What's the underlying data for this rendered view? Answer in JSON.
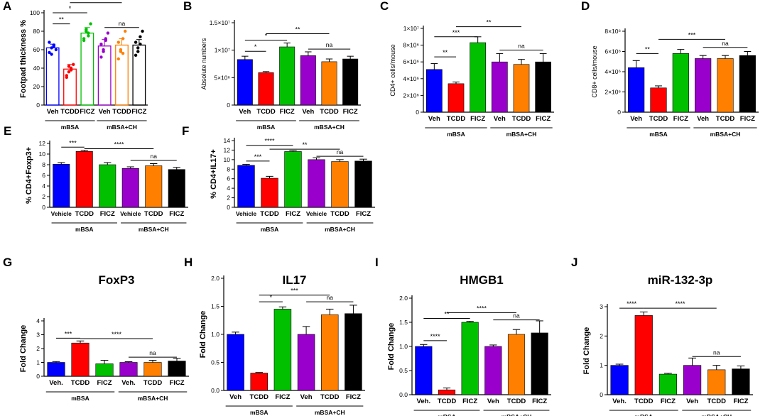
{
  "figure": {
    "colors": [
      "#0000ff",
      "#ff0000",
      "#00c000",
      "#9900cc",
      "#ff8000",
      "#000000"
    ],
    "group_labels": [
      "mBSA",
      "mBSA+CH"
    ]
  },
  "chart_data": [
    {
      "panel": "A",
      "type": "bar",
      "ylabel": "Footpad thickness %",
      "ylim": [
        0,
        100
      ],
      "yticks": [
        "0",
        "20",
        "40",
        "60",
        "80",
        "100"
      ],
      "ytick_values": [
        0,
        20,
        40,
        60,
        80,
        100
      ],
      "categories": [
        "Veh",
        "TCDD",
        "FICZ",
        "Veh",
        "TCDD",
        "FICZ"
      ],
      "values": [
        62,
        39,
        78,
        64,
        65,
        65
      ],
      "errors": [
        4,
        5,
        6,
        7,
        7,
        6
      ],
      "style": "scatter-bar",
      "dots": [
        [
          57,
          62,
          65,
          60,
          68,
          55,
          64
        ],
        [
          32,
          36,
          40,
          44,
          30,
          42,
          38
        ],
        [
          70,
          82,
          75,
          88,
          72,
          80,
          78
        ],
        [
          52,
          60,
          70,
          78,
          66,
          58,
          72
        ],
        [
          50,
          58,
          72,
          80,
          68,
          60,
          56
        ],
        [
          54,
          62,
          74,
          80,
          68,
          58,
          66
        ]
      ],
      "sig": [
        {
          "from": 0,
          "to": 1,
          "text": "**",
          "y": 88
        },
        {
          "from": 0,
          "to": 2,
          "text": "*",
          "y": 100
        },
        {
          "from": 1,
          "to": 4,
          "text": "*",
          "y": 111
        },
        {
          "from": 3,
          "to": 5,
          "text": "na",
          "y": 84
        }
      ]
    },
    {
      "panel": "B",
      "type": "bar",
      "ylabel": "Absolute numbers",
      "ylim": [
        0,
        15000000
      ],
      "yticks": [
        "0",
        "5×10⁶",
        "1×10⁷",
        "1.5×10⁷"
      ],
      "ytick_values": [
        0,
        5000000,
        10000000,
        15000000
      ],
      "categories": [
        "Veh",
        "TCDD",
        "FICZ",
        "Veh",
        "TCDD",
        "FICZ"
      ],
      "values": [
        8300000,
        5900000,
        10600000,
        9000000,
        7900000,
        8400000
      ],
      "errors": [
        600000,
        200000,
        700000,
        700000,
        500000,
        500000
      ],
      "sig": [
        {
          "from": 0,
          "to": 1,
          "text": "*",
          "y": 9800000
        },
        {
          "from": 0,
          "to": 2,
          "text": "*",
          "y": 11800000
        },
        {
          "from": 1,
          "to": 4,
          "text": "**",
          "y": 13000000
        },
        {
          "from": 3,
          "to": 5,
          "text": "na",
          "y": 10200000
        }
      ]
    },
    {
      "panel": "C",
      "type": "bar",
      "ylabel": "CD4+ cells/mouse",
      "ylim": [
        0,
        10000000
      ],
      "yticks": [
        "0",
        "2×10⁶",
        "4×10⁶",
        "6×10⁶",
        "8×10⁶",
        "1×10⁷"
      ],
      "ytick_values": [
        0,
        2000000,
        4000000,
        6000000,
        8000000,
        10000000
      ],
      "categories": [
        "Veh",
        "TCDD",
        "FICZ",
        "Veh",
        "TCDD",
        "FICZ"
      ],
      "values": [
        5100000,
        3400000,
        8300000,
        6000000,
        5700000,
        6000000
      ],
      "errors": [
        700000,
        200000,
        700000,
        1000000,
        600000,
        1000000
      ],
      "sig": [
        {
          "from": 0,
          "to": 1,
          "text": "**",
          "y": 6600000
        },
        {
          "from": 0,
          "to": 2,
          "text": "***",
          "y": 9000000
        },
        {
          "from": 1,
          "to": 4,
          "text": "**",
          "y": 10200000
        },
        {
          "from": 3,
          "to": 5,
          "text": "na",
          "y": 7400000
        }
      ]
    },
    {
      "panel": "D",
      "type": "bar",
      "ylabel": "CD8+ cells/mouse",
      "ylim": [
        0,
        8000000
      ],
      "yticks": [
        "0",
        "2×10⁶",
        "4×10⁶",
        "6×10⁶",
        "8×10⁶"
      ],
      "ytick_values": [
        0,
        2000000,
        4000000,
        6000000,
        8000000
      ],
      "categories": [
        "Veh",
        "TCDD",
        "FICZ",
        "Veh",
        "TCDD",
        "FICZ"
      ],
      "values": [
        4400000,
        2400000,
        5800000,
        5300000,
        5300000,
        5600000
      ],
      "errors": [
        700000,
        200000,
        400000,
        300000,
        300000,
        400000
      ],
      "sig": [
        {
          "from": 0,
          "to": 1,
          "text": "**",
          "y": 5800000
        },
        {
          "from": 1,
          "to": 4,
          "text": "***",
          "y": 7200000
        },
        {
          "from": 3,
          "to": 5,
          "text": "na",
          "y": 6400000
        }
      ]
    },
    {
      "panel": "E",
      "type": "bar",
      "ylabel": "% CD4+Foxp3+",
      "ylim": [
        0,
        12
      ],
      "yticks": [
        "0",
        "2",
        "4",
        "6",
        "8",
        "10",
        "12"
      ],
      "ytick_values": [
        0,
        2,
        4,
        6,
        8,
        10,
        12
      ],
      "categories": [
        "Vehicle",
        "TCDD",
        "FICZ",
        "Vehicle",
        "TCDD",
        "FICZ"
      ],
      "values": [
        8.1,
        10.5,
        8.0,
        7.3,
        7.8,
        7.1
      ],
      "errors": [
        0.3,
        0.2,
        0.4,
        0.3,
        0.4,
        0.4
      ],
      "sig": [
        {
          "from": 0,
          "to": 1,
          "text": "***",
          "y": 11.3
        },
        {
          "from": 1,
          "to": 4,
          "text": "****",
          "y": 11.0
        },
        {
          "from": 3,
          "to": 5,
          "text": "na",
          "y": 8.8
        }
      ]
    },
    {
      "panel": "F",
      "type": "bar",
      "ylabel": "% CD4+IL17+",
      "ylim": [
        0,
        14
      ],
      "yticks": [
        "0",
        "2",
        "4",
        "6",
        "8",
        "10",
        "12",
        "14"
      ],
      "ytick_values": [
        0,
        2,
        4,
        6,
        8,
        10,
        12,
        14
      ],
      "categories": [
        "Vehicle",
        "TCDD",
        "FICZ",
        "Vehicle",
        "TCDD",
        "FICZ"
      ],
      "values": [
        8.8,
        6.1,
        11.7,
        10.0,
        9.6,
        9.7
      ],
      "errors": [
        0.2,
        0.4,
        0.2,
        0.4,
        0.4,
        0.4
      ],
      "sig": [
        {
          "from": 0,
          "to": 1,
          "text": "***",
          "y": 9.7
        },
        {
          "from": 0,
          "to": 2,
          "text": "****",
          "y": 13.0
        },
        {
          "from": 1,
          "to": 4,
          "text": "**",
          "y": 12.2
        },
        {
          "from": 3,
          "to": 5,
          "text": "na",
          "y": 10.7
        }
      ]
    },
    {
      "panel": "G",
      "type": "bar",
      "title": "FoxP3",
      "ylabel": "Fold Change",
      "ylim": [
        0,
        4
      ],
      "yticks": [
        "0",
        "1",
        "2",
        "3",
        "4"
      ],
      "ytick_values": [
        0,
        1,
        2,
        3,
        4
      ],
      "categories": [
        "Veh.",
        "TCDD",
        "FICZ",
        "Veh.",
        "TCDD",
        "FICZ"
      ],
      "values": [
        1.0,
        2.4,
        0.9,
        1.0,
        1.0,
        1.1
      ],
      "errors": [
        0.06,
        0.15,
        0.25,
        0.05,
        0.15,
        0.2
      ],
      "sig": [
        {
          "from": 0,
          "to": 1,
          "text": "***",
          "y": 2.75
        },
        {
          "from": 1,
          "to": 4,
          "text": "****",
          "y": 2.72
        },
        {
          "from": 3,
          "to": 5,
          "text": "na",
          "y": 1.38
        }
      ]
    },
    {
      "panel": "H",
      "type": "bar",
      "title": "IL17",
      "ylabel": "Fold Change",
      "ylim": [
        0,
        2.0
      ],
      "yticks": [
        "0.0",
        "0.5",
        "1.0",
        "1.5",
        "2.0"
      ],
      "ytick_values": [
        0,
        0.5,
        1.0,
        1.5,
        2.0
      ],
      "categories": [
        "Veh",
        "TCDD",
        "FICZ",
        "Veh",
        "TCDD",
        "FICZ"
      ],
      "values": [
        1.0,
        0.31,
        1.45,
        1.0,
        1.35,
        1.37
      ],
      "errors": [
        0.04,
        0.01,
        0.04,
        0.14,
        0.1,
        0.15
      ],
      "sig": [
        {
          "from": 1,
          "to": 2,
          "text": "*",
          "y": 1.58
        },
        {
          "from": 1,
          "to": 4,
          "text": "***",
          "y": 1.7
        },
        {
          "from": 3,
          "to": 5,
          "text": "na",
          "y": 1.58
        }
      ]
    },
    {
      "panel": "I",
      "type": "bar",
      "title": "HMGB1",
      "ylabel": "Fold Change",
      "ylim": [
        0,
        2.0
      ],
      "yticks": [
        "0.0",
        "0.5",
        "1.0",
        "1.5",
        "2.0"
      ],
      "ytick_values": [
        0,
        0.5,
        1.0,
        1.5,
        2.0
      ],
      "categories": [
        "Veh.",
        "TCDD",
        "FICZ",
        "Veh",
        "TCDD",
        "FICZ"
      ],
      "values": [
        1.0,
        0.1,
        1.5,
        1.0,
        1.25,
        1.28
      ],
      "errors": [
        0.04,
        0.04,
        0.02,
        0.03,
        0.1,
        0.25
      ],
      "sig": [
        {
          "from": 0,
          "to": 1,
          "text": "****",
          "y": 1.12
        },
        {
          "from": 0,
          "to": 2,
          "text": "**",
          "y": 1.58
        },
        {
          "from": 1,
          "to": 4,
          "text": "****",
          "y": 1.7
        },
        {
          "from": 3,
          "to": 5,
          "text": "na",
          "y": 1.55
        }
      ]
    },
    {
      "panel": "J",
      "type": "bar",
      "title": "miR-132-3p",
      "ylabel": "Fold Change",
      "ylim": [
        0,
        3
      ],
      "yticks": [
        "0",
        "1",
        "2",
        "3"
      ],
      "ytick_values": [
        0,
        1,
        2,
        3
      ],
      "categories": [
        "Veh.",
        "TCDD",
        "FICZ",
        "Veh",
        "TCDD",
        "FICZ"
      ],
      "values": [
        1.0,
        2.7,
        0.7,
        1.0,
        0.85,
        0.88
      ],
      "errors": [
        0.04,
        0.12,
        0.03,
        0.25,
        0.15,
        0.1
      ],
      "sig": [
        {
          "from": 0,
          "to": 1,
          "text": "****",
          "y": 2.95
        },
        {
          "from": 1,
          "to": 4,
          "text": "****",
          "y": 2.95
        },
        {
          "from": 3,
          "to": 5,
          "text": "na",
          "y": 1.3
        }
      ]
    }
  ]
}
